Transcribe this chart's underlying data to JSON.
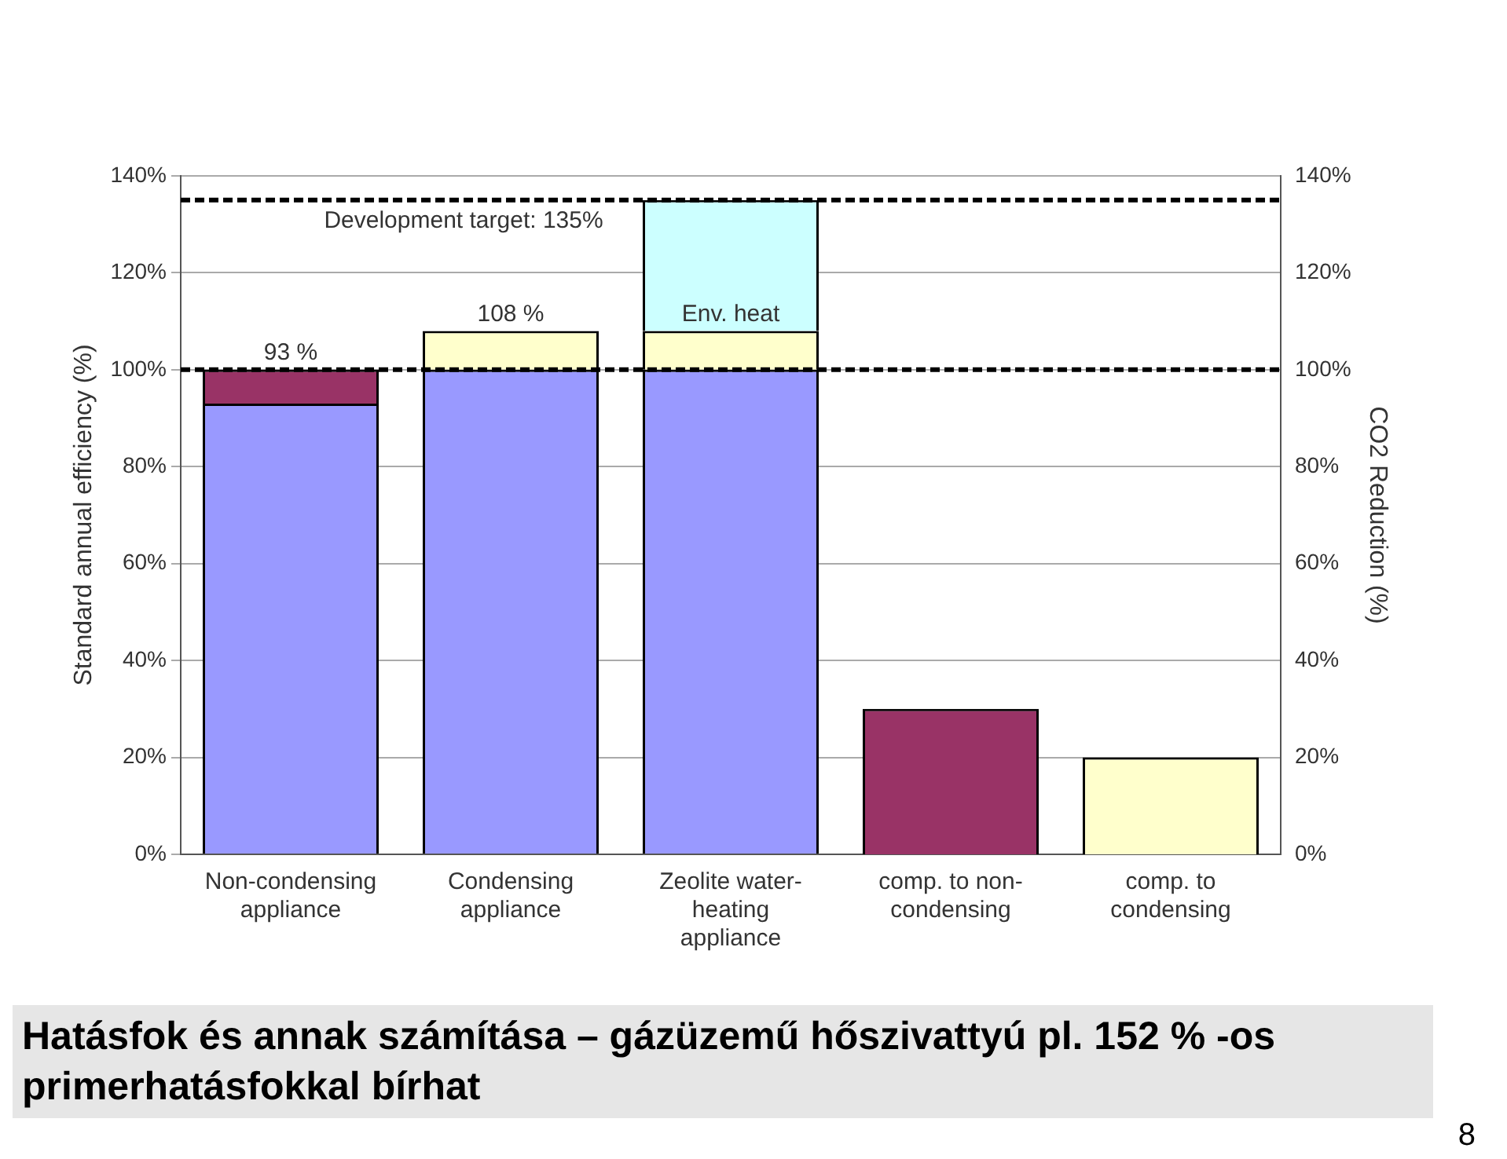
{
  "chart_data": {
    "type": "bar",
    "title": "Hatásfok és annak számítása – gázüzemű hőszivattyú pl. 152 % -os primerhatásfokkal bírhat",
    "ylabel": "Standard annual efficiency (%)",
    "y2label": "CO2 Reduction (%)",
    "categories": [
      "Non-condensing appliance",
      "Condensing appliance",
      "Zeolite water-heating appliance",
      "comp. to non-condensing",
      "comp. to condensing"
    ],
    "stacked": true,
    "series": [
      {
        "color": "#9999ff",
        "values": [
          93,
          100,
          100,
          null,
          null
        ]
      },
      {
        "color": "#993366",
        "values": [
          7,
          null,
          null,
          null,
          null
        ]
      },
      {
        "color": "#ffffcc",
        "values": [
          null,
          8,
          8,
          null,
          null
        ]
      },
      {
        "color": "#ccffff",
        "values": [
          null,
          null,
          27,
          null,
          null
        ]
      },
      {
        "color": "#993366",
        "axis": "y2",
        "values": [
          null,
          null,
          null,
          30,
          null
        ]
      },
      {
        "color": "#ffffcc",
        "axis": "y2",
        "values": [
          null,
          null,
          null,
          null,
          20
        ]
      }
    ],
    "ylim": [
      0,
      140
    ],
    "yticks": [
      {
        "value": 0,
        "label": "0%"
      },
      {
        "value": 20,
        "label": "20%"
      },
      {
        "value": 40,
        "label": "40%"
      },
      {
        "value": 60,
        "label": "60%"
      },
      {
        "value": 80,
        "label": "80%"
      },
      {
        "value": 100,
        "label": "100%"
      },
      {
        "value": 120,
        "label": "120%"
      },
      {
        "value": 140,
        "label": "140%"
      }
    ],
    "y2lim": [
      0,
      140
    ],
    "y2ticks": [
      {
        "value": 0,
        "label": "0%"
      },
      {
        "value": 20,
        "label": "20%"
      },
      {
        "value": 40,
        "label": "40%"
      },
      {
        "value": 60,
        "label": "60%"
      },
      {
        "value": 80,
        "label": "80%"
      },
      {
        "value": 100,
        "label": "100%"
      },
      {
        "value": 120,
        "label": "120%"
      },
      {
        "value": 140,
        "label": "140%"
      }
    ],
    "ref_lines": [
      {
        "axis": "y",
        "value": 135,
        "label": "Development target: 135%",
        "color": "#000000",
        "line_style": "dashed"
      },
      {
        "axis": "y",
        "value": 100,
        "label": null,
        "color": "#000000",
        "line_style": "dashed"
      }
    ],
    "annotations": [
      {
        "text": "93 %",
        "x": "Non-condensing appliance",
        "y": 100
      },
      {
        "text": "108 %",
        "x": "Condensing appliance",
        "y": 108
      },
      {
        "text": "Env. heat",
        "x": "Zeolite water-heating appliance",
        "y": 108
      },
      "8"
    ],
    "grid": "y",
    "legend": false
  }
}
